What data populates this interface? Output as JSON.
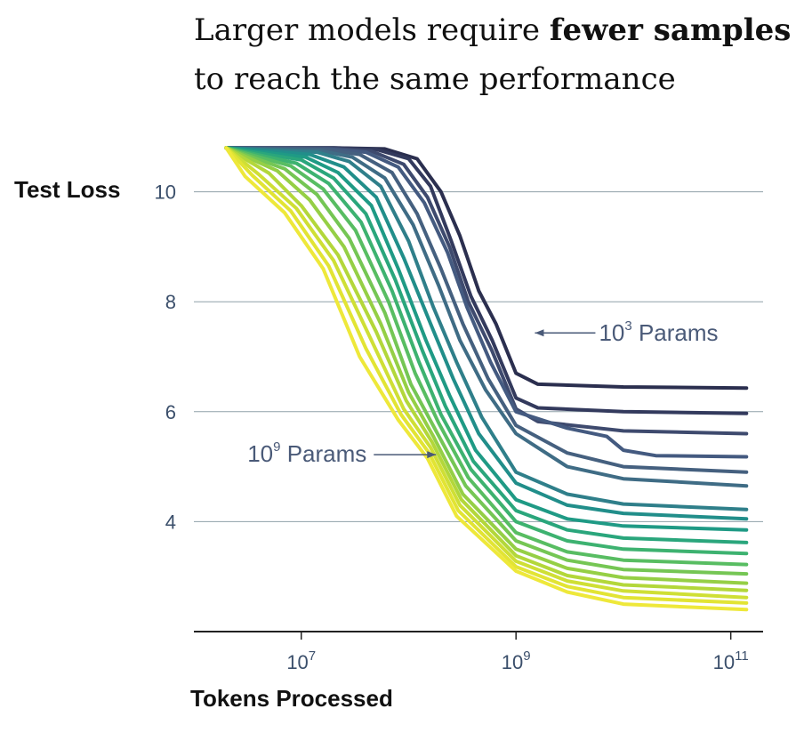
{
  "title": {
    "line1_plain": "Larger models require ",
    "line1_bold": "fewer samples",
    "line2": "to reach the same performance"
  },
  "chart_data": {
    "type": "line",
    "xlabel": "Tokens Processed",
    "ylabel": "Test Loss",
    "x_scale": "log",
    "xlim": [
      1000000,
      200000000000
    ],
    "ylim": [
      2.0,
      10.9
    ],
    "grid": "horizontal",
    "x_ticks": [
      {
        "value": 10000000,
        "base": "10",
        "exp": "7"
      },
      {
        "value": 1000000000,
        "base": "10",
        "exp": "9"
      },
      {
        "value": 100000000000,
        "base": "10",
        "exp": "11"
      }
    ],
    "y_ticks": [
      {
        "value": 10,
        "label": "10"
      },
      {
        "value": 8,
        "label": "8"
      },
      {
        "value": 6,
        "label": "6"
      },
      {
        "value": 4,
        "label": "4"
      }
    ],
    "annotations": [
      {
        "base": "10",
        "exp": "3",
        "text": " Params",
        "x": 1500000000,
        "y": 7.45
      },
      {
        "base": "10",
        "exp": "9",
        "text": " Params",
        "x": 180000000,
        "y": 5.25
      }
    ],
    "series": [
      {
        "color": "#2b2f4f",
        "values": [
          [
            2000000,
            10.8
          ],
          [
            20000000,
            10.8
          ],
          [
            60000000,
            10.78
          ],
          [
            120000000,
            10.6
          ],
          [
            200000000,
            10.0
          ],
          [
            300000000,
            9.2
          ],
          [
            450000000,
            8.2
          ],
          [
            650000000,
            7.6
          ],
          [
            1000000000,
            6.7
          ],
          [
            1600000000,
            6.5
          ],
          [
            10000000000,
            6.45
          ],
          [
            140000000000,
            6.43
          ]
        ]
      },
      {
        "color": "#333a5d",
        "values": [
          [
            2000000,
            10.8
          ],
          [
            20000000,
            10.8
          ],
          [
            50000000,
            10.77
          ],
          [
            100000000,
            10.6
          ],
          [
            160000000,
            10.1
          ],
          [
            250000000,
            9.1
          ],
          [
            380000000,
            8.1
          ],
          [
            600000000,
            7.3
          ],
          [
            1000000000,
            6.25
          ],
          [
            1600000000,
            6.07
          ],
          [
            10000000000,
            6.0
          ],
          [
            140000000000,
            5.97
          ]
        ]
      },
      {
        "color": "#3e4a6e",
        "values": [
          [
            2000000,
            10.8
          ],
          [
            20000000,
            10.79
          ],
          [
            45000000,
            10.74
          ],
          [
            90000000,
            10.5
          ],
          [
            150000000,
            9.9
          ],
          [
            240000000,
            9.0
          ],
          [
            360000000,
            8.0
          ],
          [
            600000000,
            7.1
          ],
          [
            1000000000,
            6.05
          ],
          [
            1600000000,
            5.82
          ],
          [
            10000000000,
            5.65
          ],
          [
            140000000000,
            5.6
          ]
        ]
      },
      {
        "color": "#445a80",
        "values": [
          [
            2000000,
            10.8
          ],
          [
            18000000,
            10.78
          ],
          [
            40000000,
            10.72
          ],
          [
            80000000,
            10.45
          ],
          [
            140000000,
            9.8
          ],
          [
            230000000,
            8.9
          ],
          [
            350000000,
            7.9
          ],
          [
            580000000,
            6.9
          ],
          [
            1000000000,
            6.0
          ],
          [
            3000000000,
            5.7
          ],
          [
            7000000000,
            5.55
          ],
          [
            10000000000,
            5.3
          ],
          [
            20000000000,
            5.2
          ],
          [
            140000000000,
            5.18
          ]
        ]
      },
      {
        "color": "#45607f",
        "values": [
          [
            2000000,
            10.8
          ],
          [
            16000000,
            10.77
          ],
          [
            35000000,
            10.68
          ],
          [
            70000000,
            10.35
          ],
          [
            120000000,
            9.6
          ],
          [
            200000000,
            8.6
          ],
          [
            320000000,
            7.6
          ],
          [
            550000000,
            6.6
          ],
          [
            1000000000,
            5.75
          ],
          [
            3000000000,
            5.25
          ],
          [
            10000000000,
            5.0
          ],
          [
            140000000000,
            4.9
          ]
        ]
      },
      {
        "color": "#3f6c85",
        "values": [
          [
            2000000,
            10.8
          ],
          [
            15000000,
            10.75
          ],
          [
            30000000,
            10.63
          ],
          [
            60000000,
            10.25
          ],
          [
            110000000,
            9.4
          ],
          [
            190000000,
            8.3
          ],
          [
            300000000,
            7.3
          ],
          [
            520000000,
            6.4
          ],
          [
            1000000000,
            5.6
          ],
          [
            3000000000,
            5.0
          ],
          [
            10000000000,
            4.78
          ],
          [
            140000000000,
            4.65
          ]
        ]
      },
      {
        "color": "#2f7f8a",
        "values": [
          [
            2000000,
            10.8
          ],
          [
            14000000,
            10.72
          ],
          [
            28000000,
            10.55
          ],
          [
            55000000,
            10.1
          ],
          [
            100000000,
            9.1
          ],
          [
            170000000,
            7.9
          ],
          [
            280000000,
            6.9
          ],
          [
            480000000,
            5.9
          ],
          [
            1000000000,
            4.9
          ],
          [
            3000000000,
            4.5
          ],
          [
            10000000000,
            4.32
          ],
          [
            140000000000,
            4.22
          ]
        ]
      },
      {
        "color": "#218e8a",
        "values": [
          [
            2000000,
            10.8
          ],
          [
            12000000,
            10.68
          ],
          [
            25000000,
            10.45
          ],
          [
            50000000,
            9.9
          ],
          [
            90000000,
            8.8
          ],
          [
            160000000,
            7.6
          ],
          [
            260000000,
            6.6
          ],
          [
            450000000,
            5.6
          ],
          [
            1000000000,
            4.7
          ],
          [
            3000000000,
            4.3
          ],
          [
            10000000000,
            4.15
          ],
          [
            140000000000,
            4.05
          ]
        ]
      },
      {
        "color": "#1f9a85",
        "values": [
          [
            2000000,
            10.8
          ],
          [
            11000000,
            10.63
          ],
          [
            22000000,
            10.35
          ],
          [
            45000000,
            9.75
          ],
          [
            80000000,
            8.6
          ],
          [
            145000000,
            7.3
          ],
          [
            240000000,
            6.3
          ],
          [
            420000000,
            5.3
          ],
          [
            1000000000,
            4.4
          ],
          [
            3000000000,
            4.05
          ],
          [
            10000000000,
            3.92
          ],
          [
            140000000000,
            3.85
          ]
        ]
      },
      {
        "color": "#2aa67c",
        "values": [
          [
            2000000,
            10.8
          ],
          [
            10000000,
            10.58
          ],
          [
            20000000,
            10.25
          ],
          [
            40000000,
            9.6
          ],
          [
            75000000,
            8.4
          ],
          [
            135000000,
            7.1
          ],
          [
            220000000,
            6.1
          ],
          [
            400000000,
            5.1
          ],
          [
            1000000000,
            4.2
          ],
          [
            3000000000,
            3.85
          ],
          [
            10000000000,
            3.7
          ],
          [
            140000000000,
            3.62
          ]
        ]
      },
      {
        "color": "#3db270",
        "values": [
          [
            2000000,
            10.8
          ],
          [
            9000000,
            10.52
          ],
          [
            18000000,
            10.15
          ],
          [
            36000000,
            9.45
          ],
          [
            70000000,
            8.2
          ],
          [
            125000000,
            6.9
          ],
          [
            200000000,
            5.95
          ],
          [
            380000000,
            4.95
          ],
          [
            1000000000,
            4.0
          ],
          [
            3000000000,
            3.65
          ],
          [
            10000000000,
            3.5
          ],
          [
            140000000000,
            3.42
          ]
        ]
      },
      {
        "color": "#58bd62",
        "values": [
          [
            2000000,
            10.8
          ],
          [
            8000000,
            10.47
          ],
          [
            16000000,
            10.05
          ],
          [
            32000000,
            9.3
          ],
          [
            65000000,
            8.0
          ],
          [
            115000000,
            6.7
          ],
          [
            190000000,
            5.8
          ],
          [
            360000000,
            4.8
          ],
          [
            1000000000,
            3.8
          ],
          [
            3000000000,
            3.45
          ],
          [
            10000000000,
            3.3
          ],
          [
            140000000000,
            3.22
          ]
        ]
      },
      {
        "color": "#75c654",
        "values": [
          [
            2000000,
            10.8
          ],
          [
            7000000,
            10.42
          ],
          [
            14000000,
            9.95
          ],
          [
            28000000,
            9.15
          ],
          [
            60000000,
            7.8
          ],
          [
            105000000,
            6.5
          ],
          [
            180000000,
            5.65
          ],
          [
            340000000,
            4.65
          ],
          [
            1000000000,
            3.65
          ],
          [
            3000000000,
            3.3
          ],
          [
            10000000000,
            3.13
          ],
          [
            140000000000,
            3.05
          ]
        ]
      },
      {
        "color": "#95cf45",
        "values": [
          [
            2000000,
            10.8
          ],
          [
            6000000,
            10.38
          ],
          [
            12000000,
            9.85
          ],
          [
            25000000,
            9.0
          ],
          [
            55000000,
            7.6
          ],
          [
            100000000,
            6.35
          ],
          [
            170000000,
            5.55
          ],
          [
            320000000,
            4.5
          ],
          [
            1000000000,
            3.5
          ],
          [
            3000000000,
            3.15
          ],
          [
            10000000000,
            2.98
          ],
          [
            140000000000,
            2.88
          ]
        ]
      },
      {
        "color": "#b3d73a",
        "values": [
          [
            2000000,
            10.8
          ],
          [
            5000000,
            10.34
          ],
          [
            10000000,
            9.75
          ],
          [
            22000000,
            8.85
          ],
          [
            50000000,
            7.45
          ],
          [
            95000000,
            6.2
          ],
          [
            165000000,
            5.45
          ],
          [
            310000000,
            4.4
          ],
          [
            1000000000,
            3.38
          ],
          [
            3000000000,
            3.02
          ],
          [
            10000000000,
            2.85
          ],
          [
            140000000000,
            2.75
          ]
        ]
      },
      {
        "color": "#cfdf35",
        "values": [
          [
            2000000,
            10.8
          ],
          [
            4000000,
            10.32
          ],
          [
            9000000,
            9.7
          ],
          [
            20000000,
            8.75
          ],
          [
            45000000,
            7.3
          ],
          [
            90000000,
            6.05
          ],
          [
            160000000,
            5.35
          ],
          [
            300000000,
            4.3
          ],
          [
            1000000000,
            3.28
          ],
          [
            3000000000,
            2.92
          ],
          [
            10000000000,
            2.74
          ],
          [
            140000000000,
            2.62
          ]
        ]
      },
      {
        "color": "#e2e434",
        "values": [
          [
            2000000,
            10.8
          ],
          [
            3500000,
            10.3
          ],
          [
            8000000,
            9.65
          ],
          [
            18000000,
            8.65
          ],
          [
            40000000,
            7.15
          ],
          [
            85000000,
            5.95
          ],
          [
            155000000,
            5.25
          ],
          [
            290000000,
            4.2
          ],
          [
            1000000000,
            3.18
          ],
          [
            3000000000,
            2.82
          ],
          [
            10000000000,
            2.62
          ],
          [
            140000000000,
            2.52
          ]
        ]
      },
      {
        "color": "#eee83a",
        "values": [
          [
            2000000,
            10.8
          ],
          [
            3000000,
            10.28
          ],
          [
            7000000,
            9.62
          ],
          [
            16000000,
            8.6
          ],
          [
            35000000,
            7.0
          ],
          [
            80000000,
            5.85
          ],
          [
            150000000,
            5.15
          ],
          [
            280000000,
            4.1
          ],
          [
            1000000000,
            3.1
          ],
          [
            3000000000,
            2.72
          ],
          [
            10000000000,
            2.5
          ],
          [
            140000000000,
            2.4
          ]
        ]
      }
    ]
  }
}
